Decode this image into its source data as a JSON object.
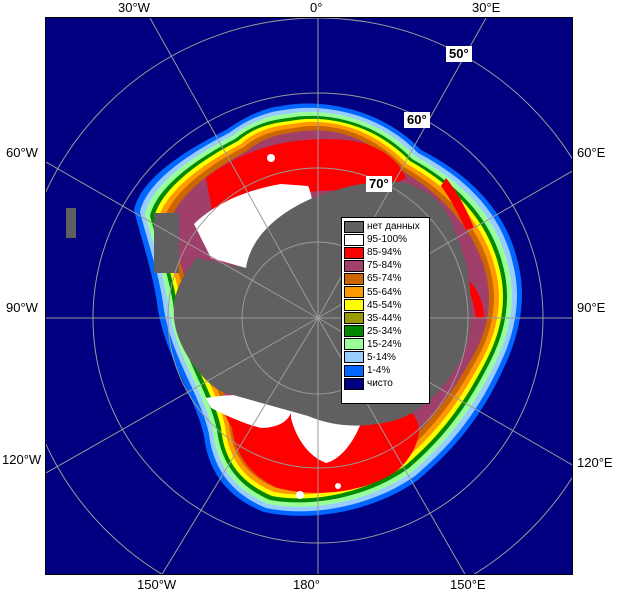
{
  "lon_labels": {
    "top": [
      "30°W",
      "0°",
      "30°E"
    ],
    "bottom": [
      "150°W",
      "180°",
      "150°E"
    ],
    "left": [
      "60°W",
      "90°W",
      "120°W"
    ],
    "right": [
      "60°E",
      "90°E",
      "120°E"
    ]
  },
  "lat_labels": [
    "50°",
    "60°",
    "70°"
  ],
  "legend": [
    {
      "label": "нет данных",
      "color": "#606060"
    },
    {
      "label": "95-100%",
      "color": "#ffffff"
    },
    {
      "label": "85-94%",
      "color": "#ff0000"
    },
    {
      "label": "75-84%",
      "color": "#a0406a"
    },
    {
      "label": "65-74%",
      "color": "#cc6600"
    },
    {
      "label": "55-64%",
      "color": "#ff9900"
    },
    {
      "label": "45-54%",
      "color": "#ffff00"
    },
    {
      "label": "35-44%",
      "color": "#999900"
    },
    {
      "label": "25-34%",
      "color": "#008800"
    },
    {
      "label": "15-24%",
      "color": "#99ff99"
    },
    {
      "label": "5-14%",
      "color": "#99ccff"
    },
    {
      "label": "1-4%",
      "color": "#0066ff"
    },
    {
      "label": "чисто",
      "color": "#000080"
    }
  ],
  "colors": {
    "ocean": "#000080",
    "no_data": "#606060",
    "grid": "#9a9a9a"
  }
}
